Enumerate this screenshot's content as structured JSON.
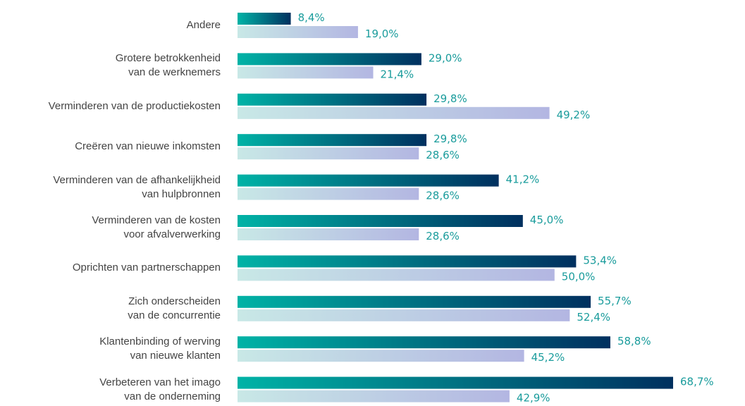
{
  "chart_data": {
    "type": "bar",
    "orientation": "horizontal",
    "categories": [
      "Andere",
      "Grotere betrokkenheid\nvan de werknemers",
      "Verminderen van de productiekosten",
      "Creëren van nieuwe inkomsten",
      "Verminderen van de afhankelijkheid\nvan hulpbronnen",
      "Verminderen van de kosten\nvoor afvalverwerking",
      "Oprichten van partnerschappen",
      "Zich onderscheiden\nvan de concurrentie",
      "Klantenbinding of werving\nvan nieuwe klanten",
      "Verbeteren van het imago\nvan de onderneming"
    ],
    "series": [
      {
        "color": [
          "#00b3a6",
          "#00305f"
        ],
        "values": [
          8.4,
          29.0,
          29.8,
          29.8,
          41.2,
          45.0,
          53.4,
          55.7,
          58.8,
          68.7
        ],
        "value_labels": [
          "8,4%",
          "29,0%",
          "29,8%",
          "29,8%",
          "41,2%",
          "45,0%",
          "53,4%",
          "55,7%",
          "58,8%",
          "68,7%"
        ]
      },
      {
        "color": [
          "#c8e8e6",
          "#b3b6e2"
        ],
        "values": [
          19.0,
          21.4,
          49.2,
          28.6,
          28.6,
          28.6,
          50.0,
          52.4,
          45.2,
          42.9
        ],
        "value_labels": [
          "19,0%",
          "21,4%",
          "49,2%",
          "28,6%",
          "28,6%",
          "28,6%",
          "50,0%",
          "52,4%",
          "45,2%",
          "42,9%"
        ]
      }
    ],
    "label_color": "#1a9c9c"
  }
}
